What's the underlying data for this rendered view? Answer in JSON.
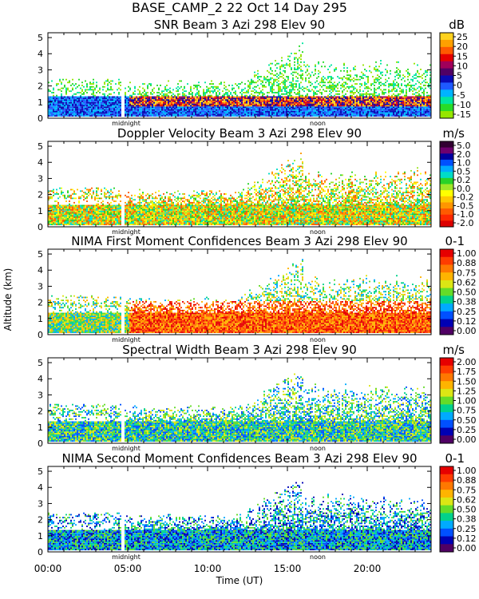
{
  "figure": {
    "title_line1": "BASE_CAMP_2  22 Oct 14 Day 295",
    "ylabel": "Altitude (km)",
    "xlabel": "Time (UT)",
    "x_tick_labels": [
      "00:00",
      "05:00",
      "10:00",
      "15:00",
      "20:00"
    ],
    "x_ticks_hours": [
      0,
      5,
      10,
      15,
      20
    ],
    "x_range_hours": [
      0,
      24
    ],
    "midnight_label": "midnight",
    "noon_label": "noon",
    "midnight_hour": 4.9,
    "noon_hour": 16.9
  },
  "chart_data": [
    {
      "type": "heatmap",
      "title": "SNR Beam 3 Azi 298 Elev 90",
      "unit": "dB",
      "ylim": [
        0,
        5.3
      ],
      "y_ticks": [
        "0",
        "1",
        "2",
        "3",
        "4",
        "5"
      ],
      "colorbar_labels": [
        "25",
        "20",
        "15",
        "10",
        "5",
        "0",
        "-5",
        "-10",
        "-15"
      ],
      "colorbar_colors": [
        "#FFD21E",
        "#FFA000",
        "#FF5A00",
        "#E60000",
        "#A0005A",
        "#500064",
        "#0A0AB4",
        "#1E5AFF",
        "#00B4FF",
        "#00E6A0",
        "#28DC28",
        "#96E600"
      ]
    },
    {
      "type": "heatmap",
      "title": "Doppler Velocity Beam 3 Azi 298 Elev 90",
      "unit": "m/s",
      "ylim": [
        0,
        5.3
      ],
      "y_ticks": [
        "0",
        "1",
        "2",
        "3",
        "4",
        "5"
      ],
      "colorbar_labels": [
        "5.0",
        "2.0",
        "1.0",
        "0.5",
        "0.2",
        "0.0",
        "-0.2",
        "-0.5",
        "-1.0",
        "-2.0"
      ],
      "colorbar_colors": [
        "#320032",
        "#6E006E",
        "#0000A0",
        "#0050FF",
        "#00AAFF",
        "#00DCC8",
        "#28D228",
        "#A0E628",
        "#FFFF00",
        "#FFC800",
        "#FF9600",
        "#FF5A00",
        "#FF2800",
        "#DC0000"
      ]
    },
    {
      "type": "heatmap",
      "title": "NIMA First Moment Confidences Beam 3 Azi 298 Elev 90",
      "unit": "0-1",
      "ylim": [
        0,
        5.3
      ],
      "y_ticks": [
        "0",
        "1",
        "2",
        "3",
        "4",
        "5"
      ],
      "colorbar_labels": [
        "1.00",
        "0.88",
        "0.75",
        "0.62",
        "0.50",
        "0.38",
        "0.25",
        "0.12",
        "0.00"
      ],
      "colorbar_colors": [
        "#E60000",
        "#FF3C00",
        "#FF7800",
        "#FFB400",
        "#DCE614",
        "#64DC28",
        "#00D28C",
        "#00AAFF",
        "#0050FF",
        "#0000B4",
        "#500064"
      ]
    },
    {
      "type": "heatmap",
      "title": "Spectral Width Beam 3 Azi 298 Elev 90",
      "unit": "m/s",
      "ylim": [
        0,
        5.3
      ],
      "y_ticks": [
        "0",
        "1",
        "2",
        "3",
        "4",
        "5"
      ],
      "colorbar_labels": [
        "2.00",
        "1.75",
        "1.50",
        "1.25",
        "1.00",
        "0.75",
        "0.50",
        "0.25",
        "0.00"
      ],
      "colorbar_colors": [
        "#E60000",
        "#FF3C00",
        "#FF7800",
        "#FFB400",
        "#DCE614",
        "#64DC28",
        "#00D28C",
        "#00AAFF",
        "#0050FF",
        "#0000B4",
        "#500064"
      ]
    },
    {
      "type": "heatmap",
      "title": "NIMA Second Moment Confidences Beam 3 Azi 298 Elev 90",
      "unit": "0-1",
      "ylim": [
        0,
        5.3
      ],
      "y_ticks": [
        "0",
        "1",
        "2",
        "3",
        "4",
        "5"
      ],
      "colorbar_labels": [
        "1.00",
        "0.88",
        "0.75",
        "0.62",
        "0.50",
        "0.38",
        "0.25",
        "0.12",
        "0.00"
      ],
      "colorbar_colors": [
        "#E60000",
        "#FF3C00",
        "#FF7800",
        "#FFB400",
        "#DCE614",
        "#64DC28",
        "#00D28C",
        "#00AAFF",
        "#0050FF",
        "#0000B4",
        "#500064"
      ]
    }
  ]
}
